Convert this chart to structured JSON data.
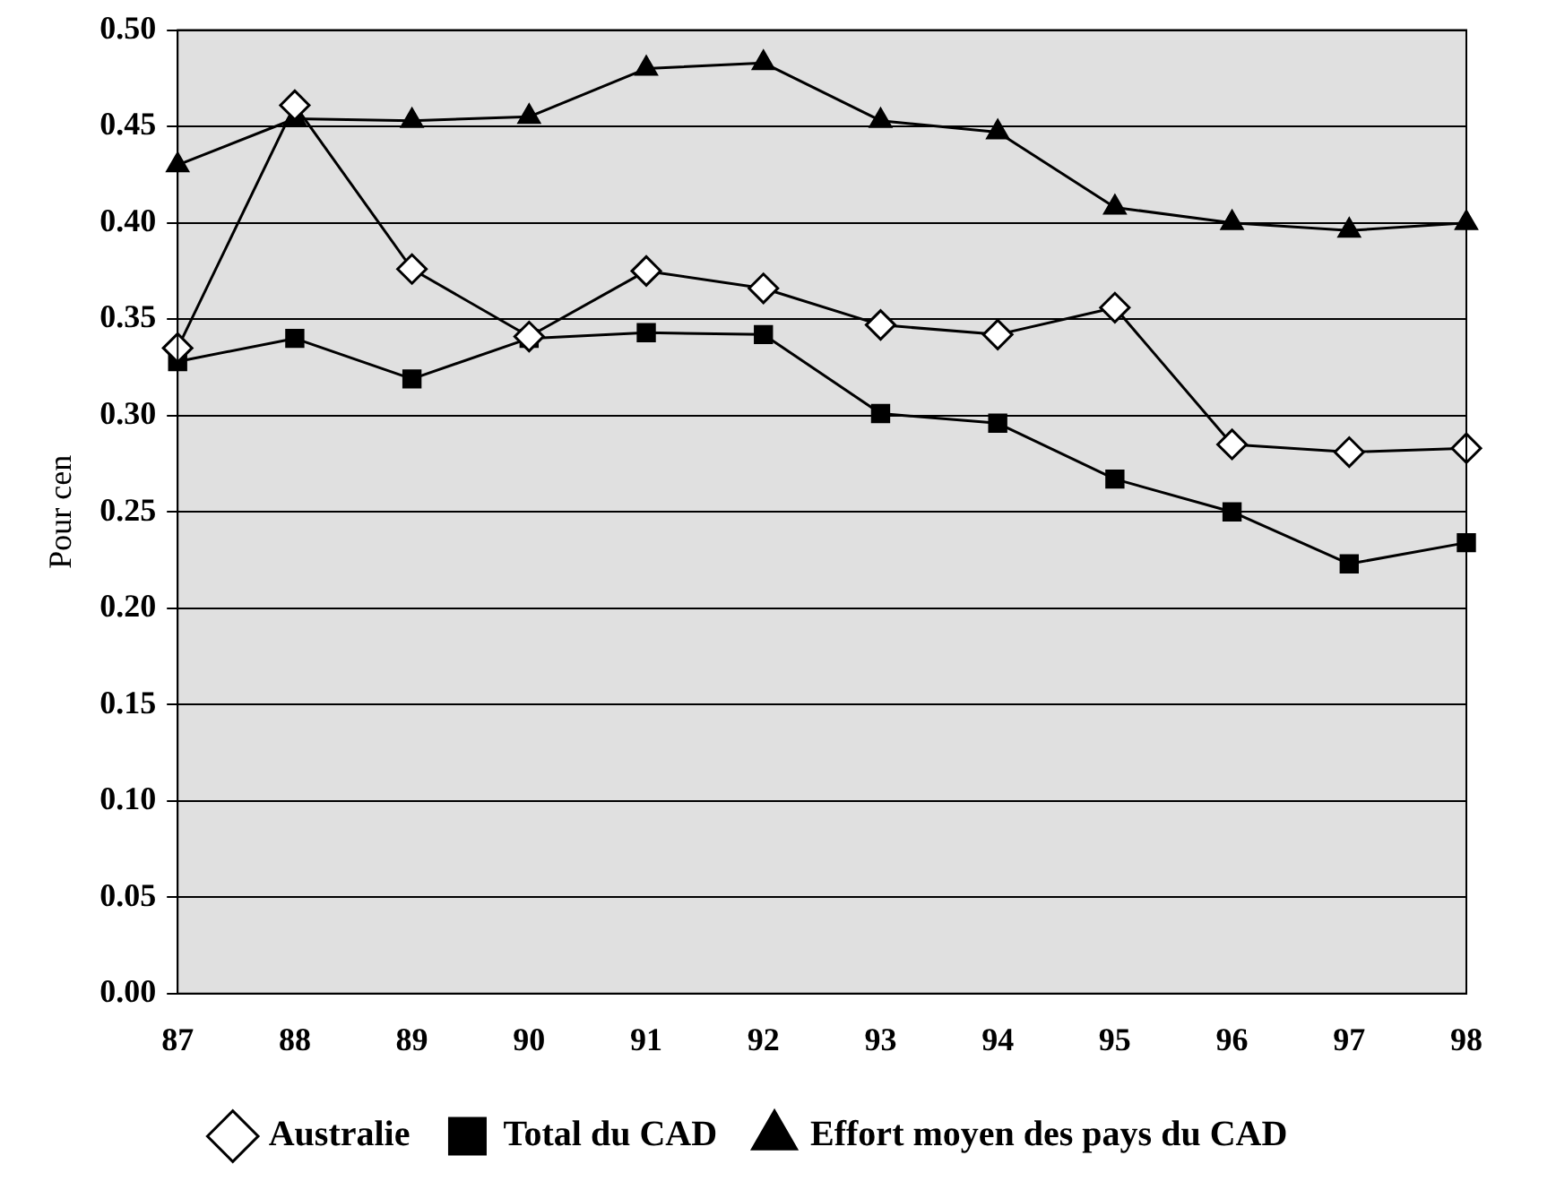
{
  "chart_data": {
    "type": "line",
    "ylabel": "Pour cen",
    "categories": [
      "87",
      "88",
      "89",
      "90",
      "91",
      "92",
      "93",
      "94",
      "95",
      "96",
      "97",
      "98"
    ],
    "series": [
      {
        "name": "Australie",
        "color": "#000000",
        "marker": "diamond",
        "values": [
          0.335,
          0.461,
          0.376,
          0.341,
          0.375,
          0.366,
          0.347,
          0.342,
          0.356,
          0.285,
          0.281,
          0.283
        ]
      },
      {
        "name": "Total du CAD",
        "color": "#000000",
        "marker": "square",
        "values": [
          0.328,
          0.34,
          0.319,
          0.34,
          0.343,
          0.342,
          0.301,
          0.296,
          0.267,
          0.25,
          0.223,
          0.234
        ]
      },
      {
        "name": "Effort moyen des pays du CAD",
        "color": "#000000",
        "marker": "triangle",
        "values": [
          0.43,
          0.454,
          0.453,
          0.455,
          0.48,
          0.483,
          0.453,
          0.447,
          0.408,
          0.4,
          0.396,
          0.4
        ]
      }
    ],
    "ylim": [
      0,
      0.5
    ],
    "yticks": [
      {
        "value": 0,
        "label": "0.00"
      },
      {
        "value": 0.05,
        "label": "0.05"
      },
      {
        "value": 0.1,
        "label": "0.10"
      },
      {
        "value": 0.15,
        "label": "0.15"
      },
      {
        "value": 0.2,
        "label": "0.20"
      },
      {
        "value": 0.25,
        "label": "0.25"
      },
      {
        "value": 0.3,
        "label": "0.30"
      },
      {
        "value": 0.35,
        "label": "0.35"
      },
      {
        "value": 0.4,
        "label": "0.40"
      },
      {
        "value": 0.45,
        "label": "0.45"
      },
      {
        "value": 0.5,
        "label": "0.50"
      }
    ],
    "grid": "y",
    "legend": "bottom",
    "line_style": "solid"
  }
}
